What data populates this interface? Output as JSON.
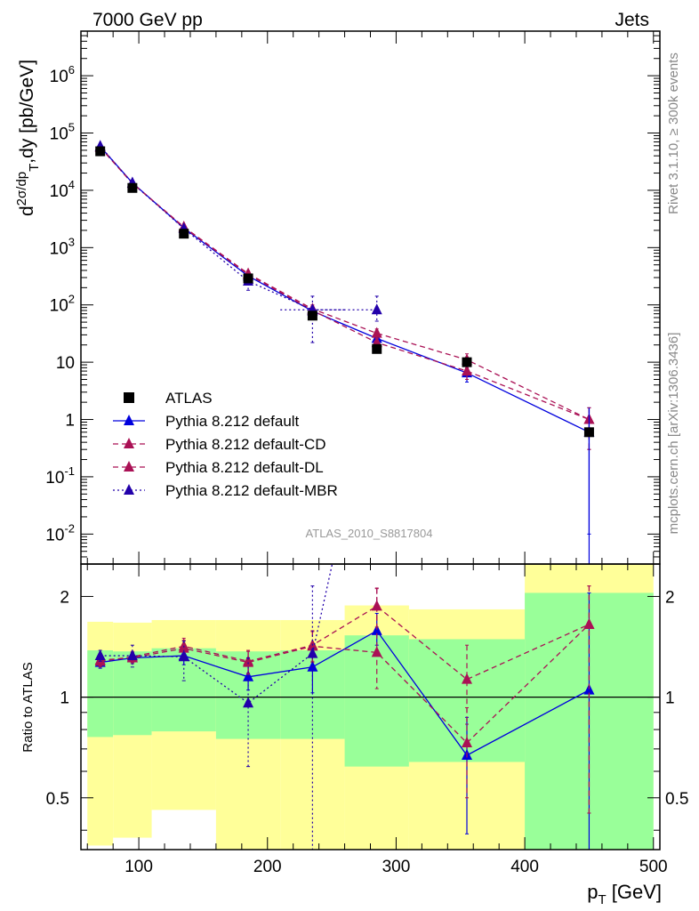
{
  "header": {
    "left": "7000 GeV pp",
    "right": "Jets"
  },
  "side_labels": {
    "top": "Rivet 3.1.10, ≥ 300k events",
    "bottom": "mcplots.cern.ch [arXiv:1306.3436]"
  },
  "analysis_id": "ATLAS_2010_S8817804",
  "chart_data": [
    {
      "type": "scatter",
      "panel": "main",
      "ylabel": "d²σ/dp_T,dy [pb/GeV]",
      "yscale": "log",
      "ylim": [
        0.003,
        6000000
      ],
      "xlim": [
        55,
        505
      ],
      "ytick_values": [
        0.01,
        0.1,
        1,
        10,
        100,
        1000,
        10000,
        100000,
        1000000
      ],
      "ytick_labels": [
        "10^-2",
        "10^-1",
        "1",
        "10",
        "10^2",
        "10^3",
        "10^4",
        "10^5",
        "10^6"
      ],
      "x": [
        70,
        95,
        135,
        185,
        235,
        285,
        355,
        450
      ],
      "legend": {
        "position": "lower-left",
        "entries": [
          "ATLAS",
          "Pythia 8.212 default",
          "Pythia 8.212 default-CD",
          "Pythia 8.212 default-DL",
          "Pythia 8.212 default-MBR"
        ]
      },
      "series": [
        {
          "name": "ATLAS",
          "color": "#000000",
          "marker": "square",
          "line": "none",
          "values": [
            48000,
            11000,
            1750,
            290,
            65,
            17,
            10,
            0.6
          ]
        },
        {
          "name": "Pythia 8.212 default",
          "color": "#0000dd",
          "marker": "triangle",
          "line": "solid",
          "values": [
            58000,
            13500,
            2200,
            320,
            78,
            26,
            6.5,
            0.6
          ],
          "err_up": [
            3000,
            700,
            150,
            40,
            15,
            6,
            2,
            1.0
          ],
          "err_down": [
            3000,
            700,
            150,
            40,
            15,
            6,
            2,
            0.59
          ]
        },
        {
          "name": "Pythia 8.212 default-CD",
          "color": "#aa1155",
          "marker": "triangle",
          "line": "dashed",
          "values": [
            57000,
            13300,
            2300,
            350,
            85,
            32,
            11,
            1.0
          ],
          "err_up": [
            3000,
            700,
            150,
            40,
            15,
            6,
            3,
            0.6
          ],
          "err_down": [
            3000,
            700,
            150,
            40,
            15,
            6,
            3,
            0.7
          ]
        },
        {
          "name": "Pythia 8.212 default-DL",
          "color": "#aa1155",
          "marker": "triangle",
          "line": "dashed",
          "values": [
            56000,
            13200,
            2250,
            340,
            80,
            22,
            7,
            1.0
          ],
          "err_up": [
            3000,
            700,
            150,
            40,
            15,
            6,
            2,
            0.6
          ],
          "err_down": [
            3000,
            700,
            150,
            40,
            15,
            6,
            2,
            0.7
          ]
        },
        {
          "name": "Pythia 8.212 default-MBR",
          "color": "#2200aa",
          "marker": "triangle",
          "line": "dotted",
          "values": [
            59000,
            13400,
            2150,
            260,
            82,
            82,
            null,
            null
          ],
          "err_up": [
            3000,
            700,
            200,
            80,
            60,
            60,
            null,
            null
          ],
          "err_down": [
            3000,
            700,
            200,
            80,
            60,
            30,
            null,
            null
          ]
        }
      ]
    },
    {
      "type": "scatter",
      "panel": "ratio",
      "xlabel": "p_T [GeV]",
      "ylabel": "Ratio to ATLAS",
      "yscale": "log",
      "ylim": [
        0.35,
        2.5
      ],
      "xlim": [
        55,
        505
      ],
      "xtick_values": [
        100,
        200,
        300,
        400,
        500
      ],
      "xtick_labels": [
        "100",
        "200",
        "300",
        "400",
        "500"
      ],
      "ytick_values": [
        0.5,
        1,
        2
      ],
      "ytick_labels": [
        "0.5",
        "1",
        "2"
      ],
      "x": [
        70,
        95,
        135,
        185,
        235,
        285,
        355,
        450
      ],
      "bins": [
        [
          60,
          80
        ],
        [
          80,
          110
        ],
        [
          110,
          160
        ],
        [
          160,
          210
        ],
        [
          210,
          260
        ],
        [
          260,
          310
        ],
        [
          310,
          400
        ],
        [
          400,
          500
        ]
      ],
      "band_green": [
        [
          0.76,
          1.38
        ],
        [
          0.77,
          1.37
        ],
        [
          0.79,
          1.4
        ],
        [
          0.75,
          1.37
        ],
        [
          0.75,
          1.38
        ],
        [
          0.62,
          1.53
        ],
        [
          0.64,
          1.49
        ],
        [
          0.35,
          2.05
        ]
      ],
      "band_yellow": [
        [
          0.36,
          1.68
        ],
        [
          0.38,
          1.67
        ],
        [
          0.46,
          1.7
        ],
        [
          0.35,
          1.7
        ],
        [
          0.35,
          1.7
        ],
        [
          0.35,
          1.88
        ],
        [
          0.35,
          1.83
        ],
        [
          0.35,
          2.5
        ]
      ],
      "series": [
        {
          "name": "Pythia 8.212 default",
          "color": "#0000dd",
          "line": "solid",
          "values": [
            1.27,
            1.31,
            1.33,
            1.15,
            1.23,
            1.58,
            0.67,
            1.05
          ],
          "err_up": [
            0.05,
            0.05,
            0.08,
            0.1,
            0.12,
            0.2,
            0.2,
            1.0
          ],
          "err_down": [
            0.05,
            0.05,
            0.08,
            0.1,
            0.2,
            0.15,
            0.28,
            0.7
          ]
        },
        {
          "name": "Pythia 8.212 default-CD",
          "color": "#aa1155",
          "line": "dashed",
          "values": [
            1.28,
            1.32,
            1.42,
            1.28,
            1.43,
            1.87,
            1.13,
            1.65
          ],
          "err_up": [
            0.05,
            0.05,
            0.08,
            0.1,
            0.15,
            0.25,
            0.3,
            0.5
          ],
          "err_down": [
            0.05,
            0.05,
            0.08,
            0.1,
            0.15,
            0.25,
            0.3,
            1.2
          ]
        },
        {
          "name": "Pythia 8.212 default-DL",
          "color": "#aa1155",
          "line": "dashed",
          "values": [
            1.29,
            1.31,
            1.4,
            1.27,
            1.42,
            1.36,
            0.73,
            1.65
          ],
          "err_up": [
            0.05,
            0.05,
            0.08,
            0.1,
            0.15,
            0.75,
            0.2,
            0.5
          ],
          "err_down": [
            0.05,
            0.05,
            0.08,
            0.1,
            0.15,
            0.3,
            0.23,
            1.2
          ]
        },
        {
          "name": "Pythia 8.212 default-MBR",
          "color": "#2200aa",
          "line": "dotted",
          "values": [
            1.33,
            1.33,
            1.32,
            0.96,
            1.35,
            null,
            null,
            null
          ],
          "err_up": [
            0.05,
            0.1,
            0.15,
            0.35,
            0.8,
            null,
            null,
            null
          ],
          "err_down": [
            0.05,
            0.1,
            0.2,
            0.34,
            1.0,
            null,
            null,
            null
          ]
        }
      ]
    }
  ]
}
